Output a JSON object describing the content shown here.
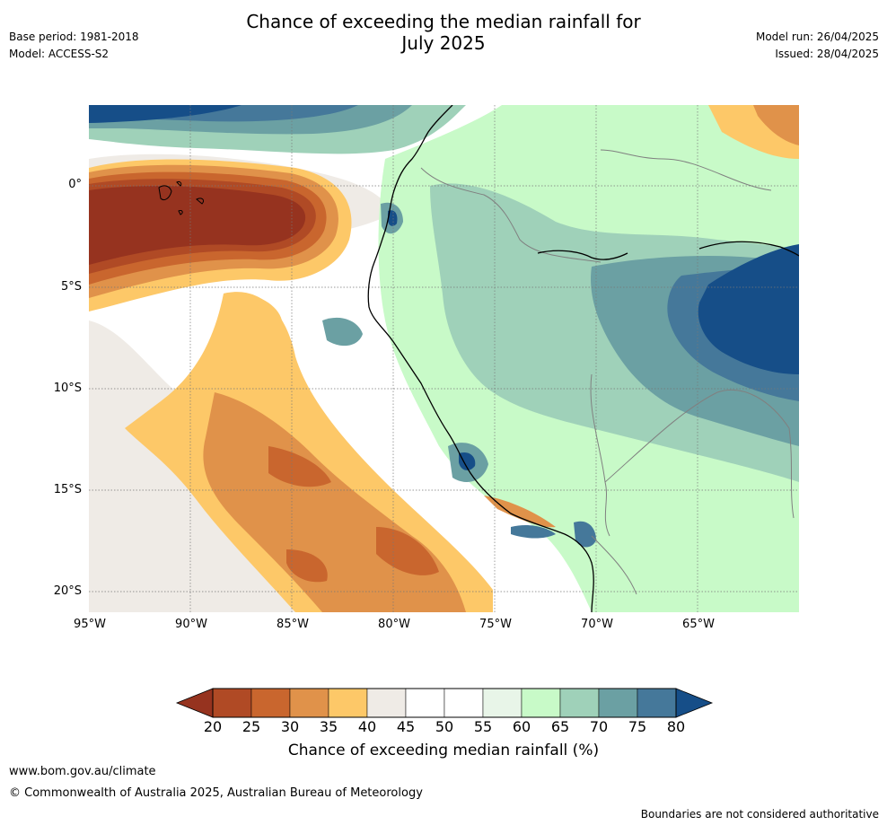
{
  "title_line1": "Chance of exceeding the median rainfall for",
  "title_line2": "July 2025",
  "meta": {
    "base_period": "Base period: 1981-2018",
    "model": "Model: ACCESS-S2",
    "model_run": "Model run: 26/04/2025",
    "issued": "Issued: 28/04/2025"
  },
  "lat_labels": [
    "0°",
    "5°S",
    "10°S",
    "15°S",
    "20°S"
  ],
  "lon_labels": [
    "95°W",
    "90°W",
    "85°W",
    "80°W",
    "75°W",
    "70°W",
    "65°W"
  ],
  "colorbar": {
    "ticks": [
      "20",
      "25",
      "30",
      "35",
      "40",
      "45",
      "50",
      "55",
      "60",
      "65",
      "70",
      "75",
      "80"
    ],
    "label": "Chance of exceeding median rainfall (%)",
    "colors": [
      "#96331f",
      "#b04a25",
      "#c9662e",
      "#e0924a",
      "#fdc868",
      "#efebe6",
      "#ffffff",
      "#ffffff",
      "#e8f5e8",
      "#c8fac8",
      "#9fd1b9",
      "#6ba0a3",
      "#45789a",
      "#164e88"
    ]
  },
  "footer": {
    "url": "www.bom.gov.au/climate",
    "copyright": "© Commonwealth of Australia 2025, Australian Bureau of Meteorology",
    "note": "Boundaries are not considered authoritative"
  }
}
